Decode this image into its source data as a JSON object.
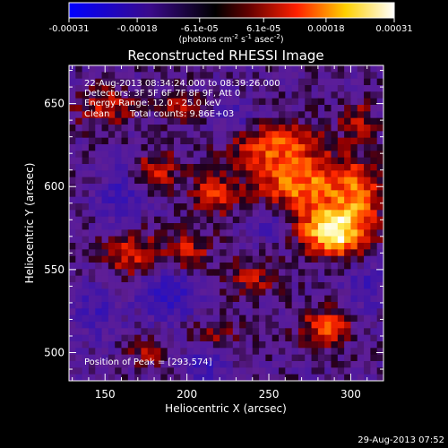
{
  "chart_data": {
    "type": "heatmap",
    "title": "Reconstructed RHESSI Image",
    "xlabel": "Heliocentric X (arcsec)",
    "ylabel": "Heliocentric Y (arcsec)",
    "xlim": [
      128,
      320
    ],
    "ylim": [
      483,
      673
    ],
    "x_ticks": [
      150,
      200,
      250,
      300
    ],
    "y_ticks": [
      500,
      550,
      600,
      650
    ],
    "colorbar": {
      "range": [
        -0.00031,
        0.00031
      ],
      "ticks": [
        "-0.00031",
        "-0.00018",
        "-6.1e-05",
        "6.1e-05",
        "0.00018",
        "0.00031"
      ],
      "tick_values": [
        -0.00031,
        -0.00018,
        -6.1e-05,
        6.1e-05,
        0.00018,
        0.00031
      ],
      "units_prefix": "(photons cm",
      "units_sup1": "-2",
      "units_mid1": " s",
      "units_sup2": "-1",
      "units_mid2": " asec",
      "units_sup3": "-2",
      "units_suffix": ")",
      "colormap": [
        "#0000ff",
        "#400080",
        "#000000",
        "#ff0000",
        "#ffff00",
        "#ffffff"
      ]
    },
    "annotations": [
      "22-Aug-2013 08:34:24.000 to 08:39:26.000",
      "Detectors: 3F 5F 6F 7F 8F 9F, Att 0",
      "Energy Range: 12.0 - 25.0 keV",
      "Clean",
      "Total counts: 9.86E+03"
    ],
    "peak_label": "Position of Peak = [293,574]",
    "peak": [
      293,
      574
    ],
    "sources": [
      {
        "x": 290,
        "y": 572,
        "amp": 1.0,
        "sx": 14,
        "sy": 10
      },
      {
        "x": 270,
        "y": 600,
        "amp": 0.7,
        "sx": 22,
        "sy": 14
      },
      {
        "x": 250,
        "y": 625,
        "amp": 0.55,
        "sx": 20,
        "sy": 10
      },
      {
        "x": 305,
        "y": 595,
        "amp": 0.5,
        "sx": 10,
        "sy": 14
      },
      {
        "x": 180,
        "y": 610,
        "amp": 0.45,
        "sx": 10,
        "sy": 8
      },
      {
        "x": 165,
        "y": 560,
        "amp": 0.5,
        "sx": 12,
        "sy": 10
      },
      {
        "x": 200,
        "y": 560,
        "amp": 0.45,
        "sx": 10,
        "sy": 8
      },
      {
        "x": 215,
        "y": 595,
        "amp": 0.45,
        "sx": 10,
        "sy": 9
      },
      {
        "x": 150,
        "y": 648,
        "amp": 0.45,
        "sx": 12,
        "sy": 8
      },
      {
        "x": 195,
        "y": 650,
        "amp": 0.4,
        "sx": 8,
        "sy": 6
      },
      {
        "x": 285,
        "y": 515,
        "amp": 0.55,
        "sx": 12,
        "sy": 8
      },
      {
        "x": 215,
        "y": 510,
        "amp": 0.35,
        "sx": 12,
        "sy": 7
      },
      {
        "x": 175,
        "y": 500,
        "amp": 0.3,
        "sx": 8,
        "sy": 6
      },
      {
        "x": 305,
        "y": 640,
        "amp": 0.35,
        "sx": 8,
        "sy": 8
      },
      {
        "x": 240,
        "y": 545,
        "amp": 0.35,
        "sx": 12,
        "sy": 8
      },
      {
        "x": 190,
        "y": 535,
        "amp": -0.45,
        "sx": 14,
        "sy": 12
      },
      {
        "x": 210,
        "y": 495,
        "amp": -0.4,
        "sx": 10,
        "sy": 10
      },
      {
        "x": 160,
        "y": 595,
        "amp": -0.35,
        "sx": 10,
        "sy": 14
      },
      {
        "x": 145,
        "y": 525,
        "amp": -0.3,
        "sx": 10,
        "sy": 14
      },
      {
        "x": 250,
        "y": 580,
        "amp": -0.35,
        "sx": 10,
        "sy": 10
      },
      {
        "x": 310,
        "y": 540,
        "amp": -0.3,
        "sx": 10,
        "sy": 12
      },
      {
        "x": 230,
        "y": 640,
        "amp": -0.3,
        "sx": 10,
        "sy": 10
      }
    ]
  },
  "footer": {
    "timestamp": "29-Aug-2013 07:52"
  }
}
